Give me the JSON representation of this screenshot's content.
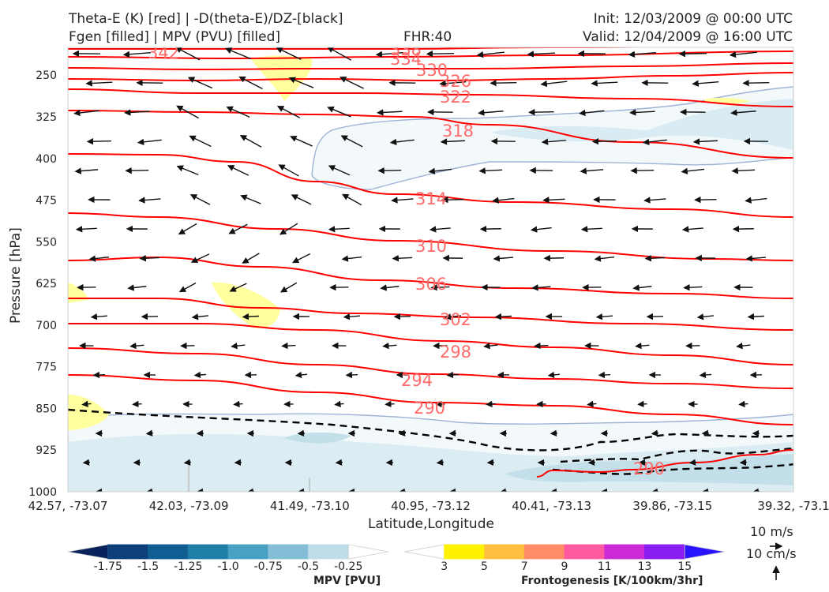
{
  "header": {
    "title_line1": "Theta-E (K) [red] | -D(theta-E)/DZ-[black]",
    "title_line2": "Fgen [filled] | MPV (PVU) [filled]",
    "fhr": "FHR:40",
    "init": "Init: 12/03/2009 @ 00:00 UTC",
    "valid": "Valid: 12/04/2009 @ 16:00 UTC"
  },
  "chart_data": {
    "type": "cross-section",
    "ylabel": "Pressure [hPa]",
    "xlabel": "Latitude,Longitude",
    "y_ticks": [
      "250",
      "325",
      "400",
      "475",
      "550",
      "625",
      "700",
      "775",
      "850",
      "925",
      "1000"
    ],
    "y_tick_values": [
      250,
      325,
      400,
      475,
      550,
      625,
      700,
      775,
      850,
      925,
      1000
    ],
    "ylim": [
      1000,
      200
    ],
    "x_ticks": [
      "42.57, -73.07",
      "42.03, -73.09",
      "41.49, -73.10",
      "40.95, -73.12",
      "40.41, -73.13",
      "39.86, -73.15",
      "39.32, -73.1"
    ],
    "theta_e_labels": [
      "342",
      "338",
      "334",
      "330",
      "326",
      "322",
      "318",
      "314",
      "310",
      "306",
      "302",
      "298",
      "294",
      "290",
      "290"
    ],
    "theta_e_color": "#ff0000",
    "label_color": "#ff6a6a",
    "wind_reference": {
      "speed_label": "10 m/s",
      "vertical_label": "10 cm/s"
    },
    "mpv_colorbar": {
      "title": "MPV [PVU]",
      "ticks": [
        "-1.75",
        "-1.5",
        "-1.25",
        "-1.0",
        "-0.75",
        "-0.5",
        "-0.25"
      ],
      "colors": [
        "#08225c",
        "#0d3f7a",
        "#0f5d92",
        "#1f7fa8",
        "#48a0c2",
        "#84bdd6",
        "#bedde9",
        "#ffffff"
      ]
    },
    "fgen_colorbar": {
      "title": "Frontogenesis [K/100km/3hr]",
      "ticks": [
        "3",
        "5",
        "7",
        "9",
        "11",
        "13",
        "15"
      ],
      "colors": [
        "#ffffff",
        "#fff200",
        "#ffbf3f",
        "#ff8c66",
        "#ff5aa0",
        "#cc2ad6",
        "#8a1ef0",
        "#2a14ff"
      ]
    }
  }
}
